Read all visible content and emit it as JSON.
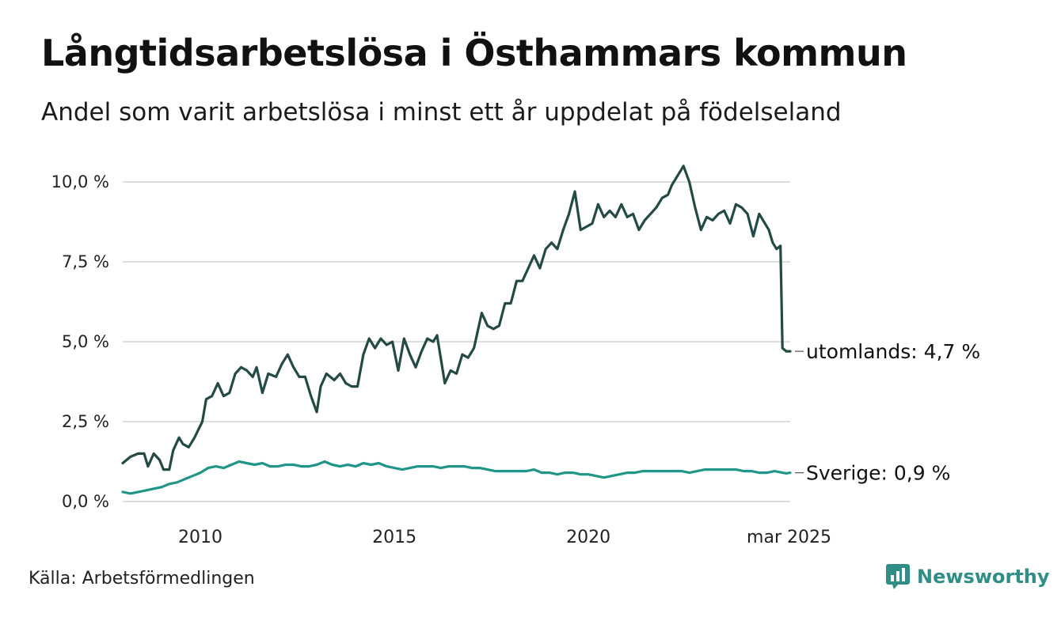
{
  "title": "Långtidsarbetslösa i Östhammars kommun",
  "subtitle": "Andel som varit arbetslösa i minst ett år uppdelat på födelseland",
  "source": "Källa: Arbetsförmedlingen",
  "brand": {
    "name": "Newsworthy",
    "icon": "newsworthy-chart-logo-icon"
  },
  "colors": {
    "utomlands": "#244a45",
    "sverige": "#1f9687",
    "grid": "#dddddd",
    "brand": "#2f8f86"
  },
  "chart_data": {
    "type": "line",
    "grid": true,
    "ylim": [
      0,
      10.5
    ],
    "yticks": [
      {
        "value": 0,
        "label": "0,0 %"
      },
      {
        "value": 2.5,
        "label": "2,5 %"
      },
      {
        "value": 5,
        "label": "5,0 %"
      },
      {
        "value": 7.5,
        "label": "7,5 %"
      },
      {
        "value": 10,
        "label": "10,0 %"
      }
    ],
    "xlim": [
      2008,
      2025.2
    ],
    "xticks": [
      {
        "value": 2010,
        "label": "2010"
      },
      {
        "value": 2015,
        "label": "2015"
      },
      {
        "value": 2020,
        "label": "2020"
      },
      {
        "value": 2025.17,
        "label": "mar 2025"
      }
    ],
    "series": [
      {
        "key": "utomlands",
        "end_label": "utomlands: 4,7 %",
        "points": [
          [
            2008.0,
            1.2
          ],
          [
            2008.2,
            1.4
          ],
          [
            2008.4,
            1.5
          ],
          [
            2008.55,
            1.5
          ],
          [
            2008.65,
            1.1
          ],
          [
            2008.8,
            1.5
          ],
          [
            2008.95,
            1.3
          ],
          [
            2009.05,
            1.0
          ],
          [
            2009.2,
            1.0
          ],
          [
            2009.3,
            1.6
          ],
          [
            2009.45,
            2.0
          ],
          [
            2009.55,
            1.8
          ],
          [
            2009.7,
            1.7
          ],
          [
            2009.85,
            2.0
          ],
          [
            2010.05,
            2.5
          ],
          [
            2010.15,
            3.2
          ],
          [
            2010.3,
            3.3
          ],
          [
            2010.45,
            3.7
          ],
          [
            2010.6,
            3.3
          ],
          [
            2010.75,
            3.4
          ],
          [
            2010.9,
            4.0
          ],
          [
            2011.05,
            4.2
          ],
          [
            2011.2,
            4.1
          ],
          [
            2011.35,
            3.9
          ],
          [
            2011.45,
            4.2
          ],
          [
            2011.6,
            3.4
          ],
          [
            2011.75,
            4.0
          ],
          [
            2011.95,
            3.9
          ],
          [
            2012.1,
            4.3
          ],
          [
            2012.25,
            4.6
          ],
          [
            2012.4,
            4.2
          ],
          [
            2012.55,
            3.9
          ],
          [
            2012.7,
            3.9
          ],
          [
            2012.85,
            3.3
          ],
          [
            2013.0,
            2.8
          ],
          [
            2013.1,
            3.6
          ],
          [
            2013.25,
            4.0
          ],
          [
            2013.45,
            3.8
          ],
          [
            2013.6,
            4.0
          ],
          [
            2013.75,
            3.7
          ],
          [
            2013.9,
            3.6
          ],
          [
            2014.05,
            3.6
          ],
          [
            2014.2,
            4.6
          ],
          [
            2014.35,
            5.1
          ],
          [
            2014.5,
            4.8
          ],
          [
            2014.65,
            5.1
          ],
          [
            2014.8,
            4.9
          ],
          [
            2014.95,
            5.0
          ],
          [
            2015.1,
            4.1
          ],
          [
            2015.25,
            5.1
          ],
          [
            2015.4,
            4.6
          ],
          [
            2015.55,
            4.2
          ],
          [
            2015.7,
            4.7
          ],
          [
            2015.85,
            5.1
          ],
          [
            2016.0,
            5.0
          ],
          [
            2016.1,
            5.2
          ],
          [
            2016.3,
            3.7
          ],
          [
            2016.45,
            4.1
          ],
          [
            2016.6,
            4.0
          ],
          [
            2016.75,
            4.6
          ],
          [
            2016.9,
            4.5
          ],
          [
            2017.05,
            4.8
          ],
          [
            2017.25,
            5.9
          ],
          [
            2017.4,
            5.5
          ],
          [
            2017.55,
            5.4
          ],
          [
            2017.7,
            5.5
          ],
          [
            2017.85,
            6.2
          ],
          [
            2018.0,
            6.2
          ],
          [
            2018.15,
            6.9
          ],
          [
            2018.3,
            6.9
          ],
          [
            2018.45,
            7.3
          ],
          [
            2018.6,
            7.7
          ],
          [
            2018.75,
            7.3
          ],
          [
            2018.9,
            7.9
          ],
          [
            2019.05,
            8.1
          ],
          [
            2019.2,
            7.9
          ],
          [
            2019.35,
            8.5
          ],
          [
            2019.5,
            9.0
          ],
          [
            2019.65,
            9.7
          ],
          [
            2019.8,
            8.5
          ],
          [
            2019.95,
            8.6
          ],
          [
            2020.1,
            8.7
          ],
          [
            2020.25,
            9.3
          ],
          [
            2020.4,
            8.9
          ],
          [
            2020.55,
            9.1
          ],
          [
            2020.7,
            8.9
          ],
          [
            2020.85,
            9.3
          ],
          [
            2021.0,
            8.9
          ],
          [
            2021.15,
            9.0
          ],
          [
            2021.3,
            8.5
          ],
          [
            2021.45,
            8.8
          ],
          [
            2021.6,
            9.0
          ],
          [
            2021.75,
            9.2
          ],
          [
            2021.9,
            9.5
          ],
          [
            2022.05,
            9.6
          ],
          [
            2022.15,
            9.9
          ],
          [
            2022.3,
            10.2
          ],
          [
            2022.45,
            10.5
          ],
          [
            2022.6,
            10.0
          ],
          [
            2022.75,
            9.2
          ],
          [
            2022.9,
            8.5
          ],
          [
            2023.05,
            8.9
          ],
          [
            2023.2,
            8.8
          ],
          [
            2023.35,
            9.0
          ],
          [
            2023.5,
            9.1
          ],
          [
            2023.65,
            8.7
          ],
          [
            2023.8,
            9.3
          ],
          [
            2023.95,
            9.2
          ],
          [
            2024.1,
            9.0
          ],
          [
            2024.25,
            8.3
          ],
          [
            2024.4,
            9.0
          ],
          [
            2024.55,
            8.7
          ],
          [
            2024.65,
            8.5
          ],
          [
            2024.75,
            8.1
          ],
          [
            2024.85,
            7.9
          ],
          [
            2024.95,
            8.0
          ],
          [
            2025.0,
            4.8
          ],
          [
            2025.1,
            4.7
          ],
          [
            2025.2,
            4.7
          ]
        ]
      },
      {
        "key": "sverige",
        "end_label": "Sverige: 0,9 %",
        "points": [
          [
            2008.0,
            0.3
          ],
          [
            2008.2,
            0.25
          ],
          [
            2008.4,
            0.3
          ],
          [
            2008.6,
            0.35
          ],
          [
            2008.8,
            0.4
          ],
          [
            2009.0,
            0.45
          ],
          [
            2009.2,
            0.55
          ],
          [
            2009.4,
            0.6
          ],
          [
            2009.6,
            0.7
          ],
          [
            2009.8,
            0.8
          ],
          [
            2010.0,
            0.9
          ],
          [
            2010.2,
            1.05
          ],
          [
            2010.4,
            1.1
          ],
          [
            2010.6,
            1.05
          ],
          [
            2010.8,
            1.15
          ],
          [
            2011.0,
            1.25
          ],
          [
            2011.2,
            1.2
          ],
          [
            2011.4,
            1.15
          ],
          [
            2011.6,
            1.2
          ],
          [
            2011.8,
            1.1
          ],
          [
            2012.0,
            1.1
          ],
          [
            2012.2,
            1.15
          ],
          [
            2012.4,
            1.15
          ],
          [
            2012.6,
            1.1
          ],
          [
            2012.8,
            1.1
          ],
          [
            2013.0,
            1.15
          ],
          [
            2013.2,
            1.25
          ],
          [
            2013.4,
            1.15
          ],
          [
            2013.6,
            1.1
          ],
          [
            2013.8,
            1.15
          ],
          [
            2014.0,
            1.1
          ],
          [
            2014.2,
            1.2
          ],
          [
            2014.4,
            1.15
          ],
          [
            2014.6,
            1.2
          ],
          [
            2014.8,
            1.1
          ],
          [
            2015.0,
            1.05
          ],
          [
            2015.2,
            1.0
          ],
          [
            2015.4,
            1.05
          ],
          [
            2015.6,
            1.1
          ],
          [
            2015.8,
            1.1
          ],
          [
            2016.0,
            1.1
          ],
          [
            2016.2,
            1.05
          ],
          [
            2016.4,
            1.1
          ],
          [
            2016.6,
            1.1
          ],
          [
            2016.8,
            1.1
          ],
          [
            2017.0,
            1.05
          ],
          [
            2017.2,
            1.05
          ],
          [
            2017.4,
            1.0
          ],
          [
            2017.6,
            0.95
          ],
          [
            2017.8,
            0.95
          ],
          [
            2018.0,
            0.95
          ],
          [
            2018.2,
            0.95
          ],
          [
            2018.4,
            0.95
          ],
          [
            2018.6,
            1.0
          ],
          [
            2018.8,
            0.9
          ],
          [
            2019.0,
            0.9
          ],
          [
            2019.2,
            0.85
          ],
          [
            2019.4,
            0.9
          ],
          [
            2019.6,
            0.9
          ],
          [
            2019.8,
            0.85
          ],
          [
            2020.0,
            0.85
          ],
          [
            2020.2,
            0.8
          ],
          [
            2020.4,
            0.75
          ],
          [
            2020.6,
            0.8
          ],
          [
            2020.8,
            0.85
          ],
          [
            2021.0,
            0.9
          ],
          [
            2021.2,
            0.9
          ],
          [
            2021.4,
            0.95
          ],
          [
            2021.6,
            0.95
          ],
          [
            2021.8,
            0.95
          ],
          [
            2022.0,
            0.95
          ],
          [
            2022.2,
            0.95
          ],
          [
            2022.4,
            0.95
          ],
          [
            2022.6,
            0.9
          ],
          [
            2022.8,
            0.95
          ],
          [
            2023.0,
            1.0
          ],
          [
            2023.2,
            1.0
          ],
          [
            2023.4,
            1.0
          ],
          [
            2023.6,
            1.0
          ],
          [
            2023.8,
            1.0
          ],
          [
            2024.0,
            0.95
          ],
          [
            2024.2,
            0.95
          ],
          [
            2024.4,
            0.9
          ],
          [
            2024.6,
            0.9
          ],
          [
            2024.8,
            0.95
          ],
          [
            2025.0,
            0.9
          ],
          [
            2025.1,
            0.88
          ],
          [
            2025.2,
            0.9
          ]
        ]
      }
    ]
  }
}
